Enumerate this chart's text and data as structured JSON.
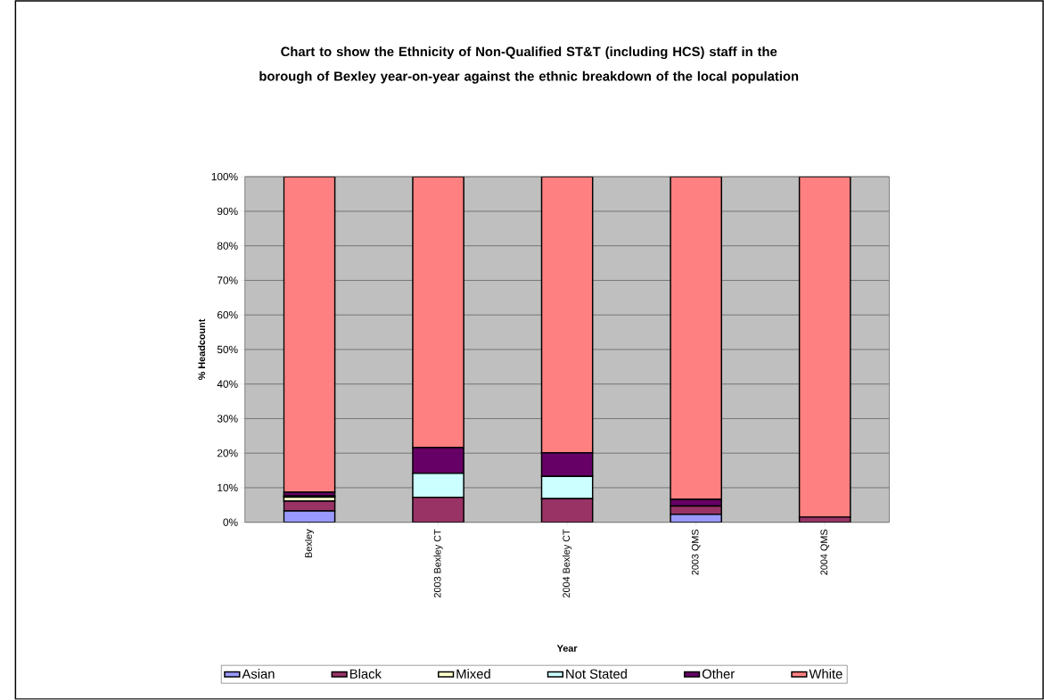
{
  "chart_data": {
    "type": "bar",
    "title": "Chart to show the Ethnicity of Non-Qualified ST&T (including HCS) staff in the borough of Bexley year-on-year against the ethnic breakdown of the local population",
    "xlabel": "Year",
    "ylabel": "% Headcount",
    "categories": [
      "Bexley",
      "2003 Bexley CT",
      "2004 Bexley CT",
      "2003 QMS",
      "2004 QMS"
    ],
    "series": [
      {
        "name": "Asian",
        "color": "#9999ff",
        "values": [
          3.3,
          0,
          0,
          2.3,
          0
        ]
      },
      {
        "name": "Black",
        "color": "#993366",
        "values": [
          2.8,
          7.2,
          6.8,
          2.4,
          1.5
        ]
      },
      {
        "name": "Mixed",
        "color": "#ffffcc",
        "values": [
          1.2,
          0,
          0,
          0,
          0
        ]
      },
      {
        "name": "Not Stated",
        "color": "#ccffff",
        "values": [
          0.3,
          7.0,
          6.5,
          0,
          0
        ]
      },
      {
        "name": "Other",
        "color": "#660066",
        "values": [
          1.1,
          7.4,
          6.8,
          1.9,
          0
        ]
      },
      {
        "name": "White",
        "color": "#ff8080",
        "values": [
          91.3,
          78.4,
          79.9,
          93.4,
          98.5
        ]
      }
    ],
    "stacked": true,
    "ylim": [
      0,
      100
    ],
    "yticks": [
      {
        "value": 0,
        "label": "0%"
      },
      {
        "value": 10,
        "label": "10%"
      },
      {
        "value": 20,
        "label": "20%"
      },
      {
        "value": 30,
        "label": "30%"
      },
      {
        "value": 40,
        "label": "40%"
      },
      {
        "value": 50,
        "label": "50%"
      },
      {
        "value": 60,
        "label": "60%"
      },
      {
        "value": 70,
        "label": "70%"
      },
      {
        "value": 80,
        "label": "80%"
      },
      {
        "value": 90,
        "label": "90%"
      },
      {
        "value": 100,
        "label": "100%"
      }
    ],
    "grid": "y",
    "legend": "bottom"
  }
}
